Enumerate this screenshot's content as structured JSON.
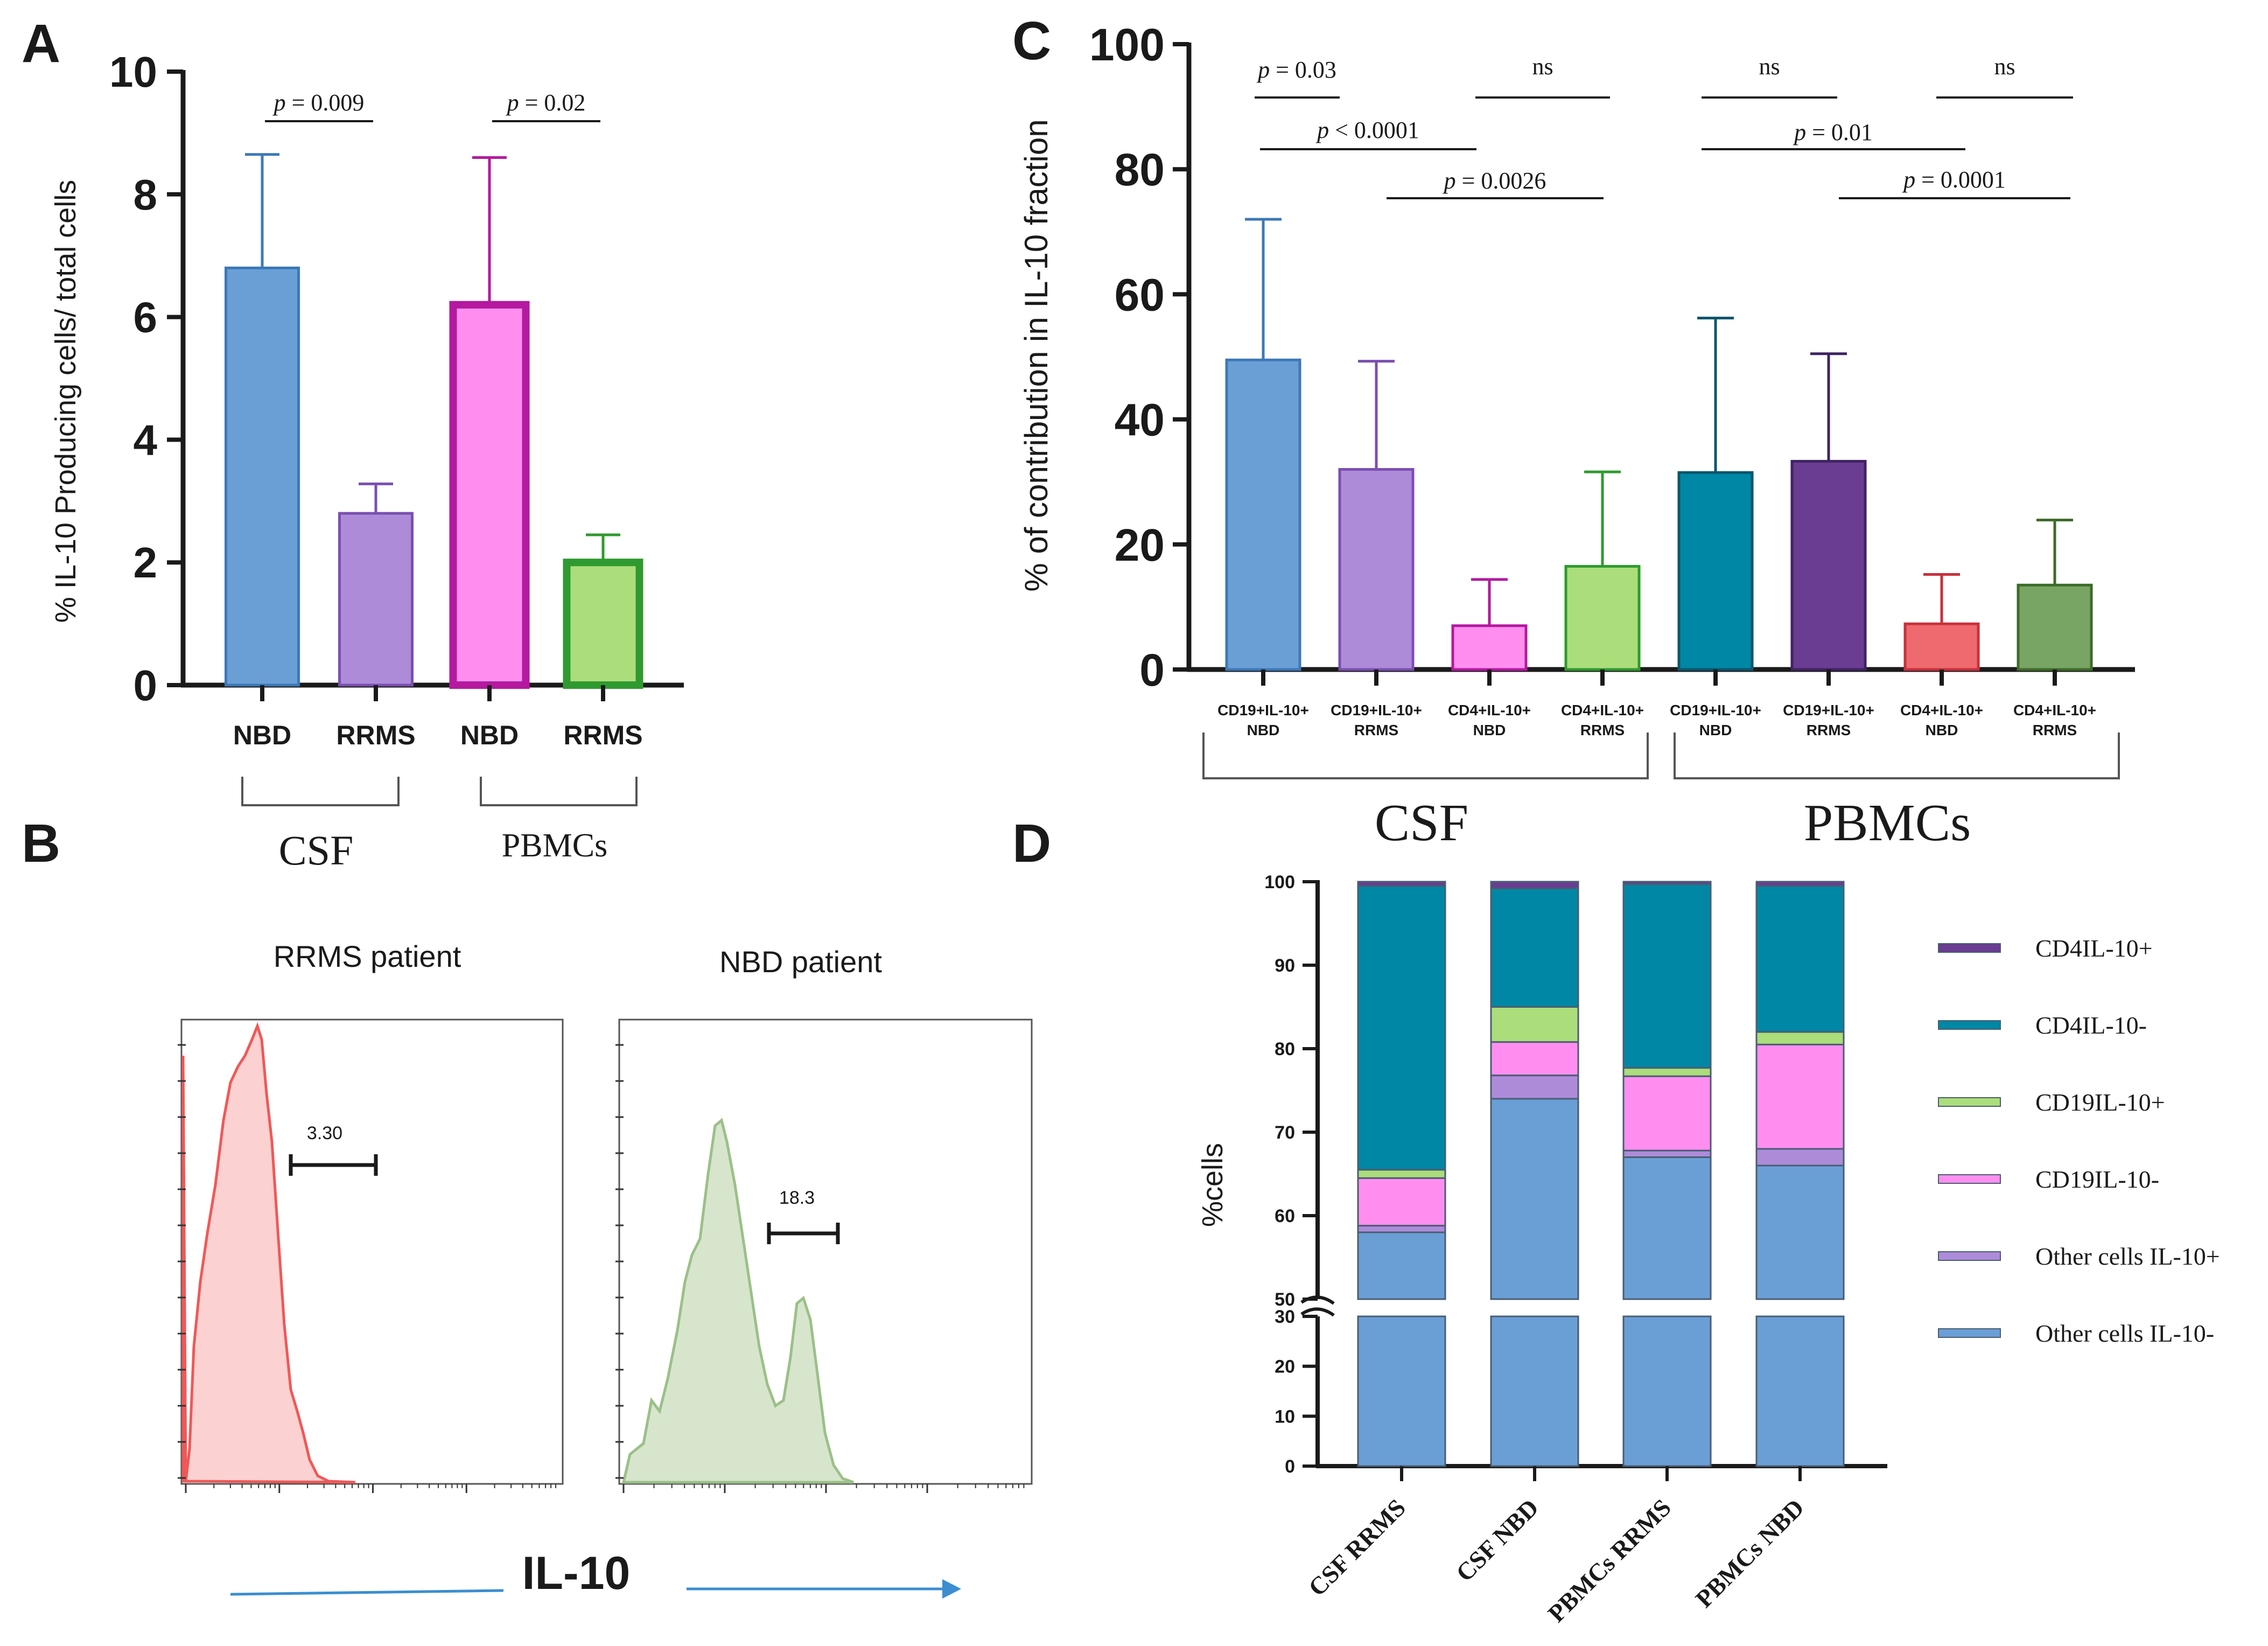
{
  "panels": {
    "A": "A",
    "B": "B",
    "C": "C",
    "D": "D"
  },
  "colors": {
    "axis": "#1a1a1a",
    "nbd_blue": "#6a9fd6",
    "rrms_purple": "#ad8bd9",
    "pink": "#ff8ef0",
    "magenta": "#b4199f",
    "light_green": "#acdd7b",
    "green": "#2f9a2f",
    "teal": "#0087a5",
    "dark_purple": "#6a3c92",
    "red": "#ef6a6e",
    "dark_green": "#79a564",
    "flow_red": "#f05858",
    "flow_red_fill": "#fcd1d1",
    "flow_green": "#9bc088",
    "flow_green_fill": "#d7e5cd",
    "arrow_blue": "#3b8ed0"
  },
  "chart_data": [
    {
      "id": "A",
      "type": "bar",
      "ylabel": "% IL-10 Producing cells/ total cells",
      "ylim": [
        0,
        10
      ],
      "yticks": [
        "0",
        "2",
        "4",
        "6",
        "8",
        "10"
      ],
      "categories": [
        "NBD",
        "RRMS",
        "NBD",
        "RRMS"
      ],
      "values": [
        6.8,
        2.8,
        6.2,
        2.0
      ],
      "errors": [
        1.85,
        0.48,
        2.4,
        0.45
      ],
      "groups": [
        "CSF",
        "PBMCs"
      ],
      "annotations": [
        {
          "text": "p = 0.009",
          "from": 0,
          "to": 1
        },
        {
          "text": "p = 0.02",
          "from": 2,
          "to": 3
        }
      ]
    },
    {
      "id": "C",
      "type": "bar",
      "ylabel": "% of contribution in IL-10 fraction",
      "ylim": [
        0,
        100
      ],
      "yticks": [
        "0",
        "20",
        "40",
        "60",
        "80",
        "100"
      ],
      "categories": [
        [
          "CD19+IL-10+",
          "NBD"
        ],
        [
          "CD19+IL-10+",
          "RRMS"
        ],
        [
          "CD4+IL-10+",
          "NBD"
        ],
        [
          "CD4+IL-10+",
          "RRMS"
        ],
        [
          "CD19+IL-10+",
          "NBD"
        ],
        [
          "CD19+IL-10+",
          "RRMS"
        ],
        [
          "CD4+IL-10+",
          "NBD"
        ],
        [
          "CD4+IL-10+",
          "RRMS"
        ]
      ],
      "values": [
        49.5,
        32,
        7,
        16.5,
        31.5,
        33.3,
        7.3,
        13.5
      ],
      "errors": [
        22.5,
        17.3,
        7.4,
        15.1,
        24.7,
        17.2,
        7.9,
        10.4
      ],
      "groups": [
        "CSF",
        "PBMCs"
      ],
      "annotations": [
        {
          "text": "p = 0.03",
          "from": 0,
          "to": 1
        },
        {
          "text": "ns",
          "from": 2,
          "to": 3
        },
        {
          "text": "ns",
          "from": 4,
          "to": 5
        },
        {
          "text": "ns",
          "from": 6,
          "to": 7
        },
        {
          "text": "p < 0.0001",
          "from": 0,
          "to": 2
        },
        {
          "text": "p = 0.01",
          "from": 4,
          "to": 6
        },
        {
          "text": "p = 0.0026",
          "from": 1,
          "to": 3
        },
        {
          "text": "p = 0.0001",
          "from": 5,
          "to": 7
        }
      ]
    },
    {
      "id": "D",
      "type": "bar",
      "stacked": true,
      "ylabel": "%cells",
      "ylim": [
        0,
        100
      ],
      "axis_break": [
        30,
        50
      ],
      "yticks_lower": [
        "0",
        "10",
        "20",
        "30"
      ],
      "yticks_upper": [
        "50",
        "60",
        "70",
        "80",
        "90",
        "100"
      ],
      "categories": [
        "CSF RRMS",
        "CSF NBD",
        "PBMCs RRMS",
        "PBMCs NBD"
      ],
      "series": [
        {
          "name": "Other cells IL-10-",
          "values": [
            58,
            74,
            67,
            66
          ]
        },
        {
          "name": "Other cells  IL-10+",
          "values": [
            0.8,
            2.8,
            0.8,
            2
          ]
        },
        {
          "name": " CD19IL-10-",
          "values": [
            5.7,
            4,
            8.9,
            12.5
          ]
        },
        {
          "name": "CD19IL-10+",
          "values": [
            1,
            4.2,
            1,
            1.5
          ]
        },
        {
          "name": "CD4IL-10-",
          "values": [
            34,
            14.2,
            22,
            17.5
          ]
        },
        {
          "name": "CD4IL-10+",
          "values": [
            0.5,
            0.8,
            0.3,
            0.5
          ]
        }
      ],
      "legend": [
        "CD4IL-10+",
        "CD4IL-10-",
        "CD19IL-10+",
        " CD19IL-10-",
        "Other cells  IL-10+",
        "Other cells IL-10-"
      ]
    }
  ],
  "flow": {
    "xlabel": "IL-10",
    "plots": [
      {
        "title": "RRMS patient",
        "gate_value": "3.30"
      },
      {
        "title": "NBD patient",
        "gate_value": "18.3"
      }
    ]
  }
}
